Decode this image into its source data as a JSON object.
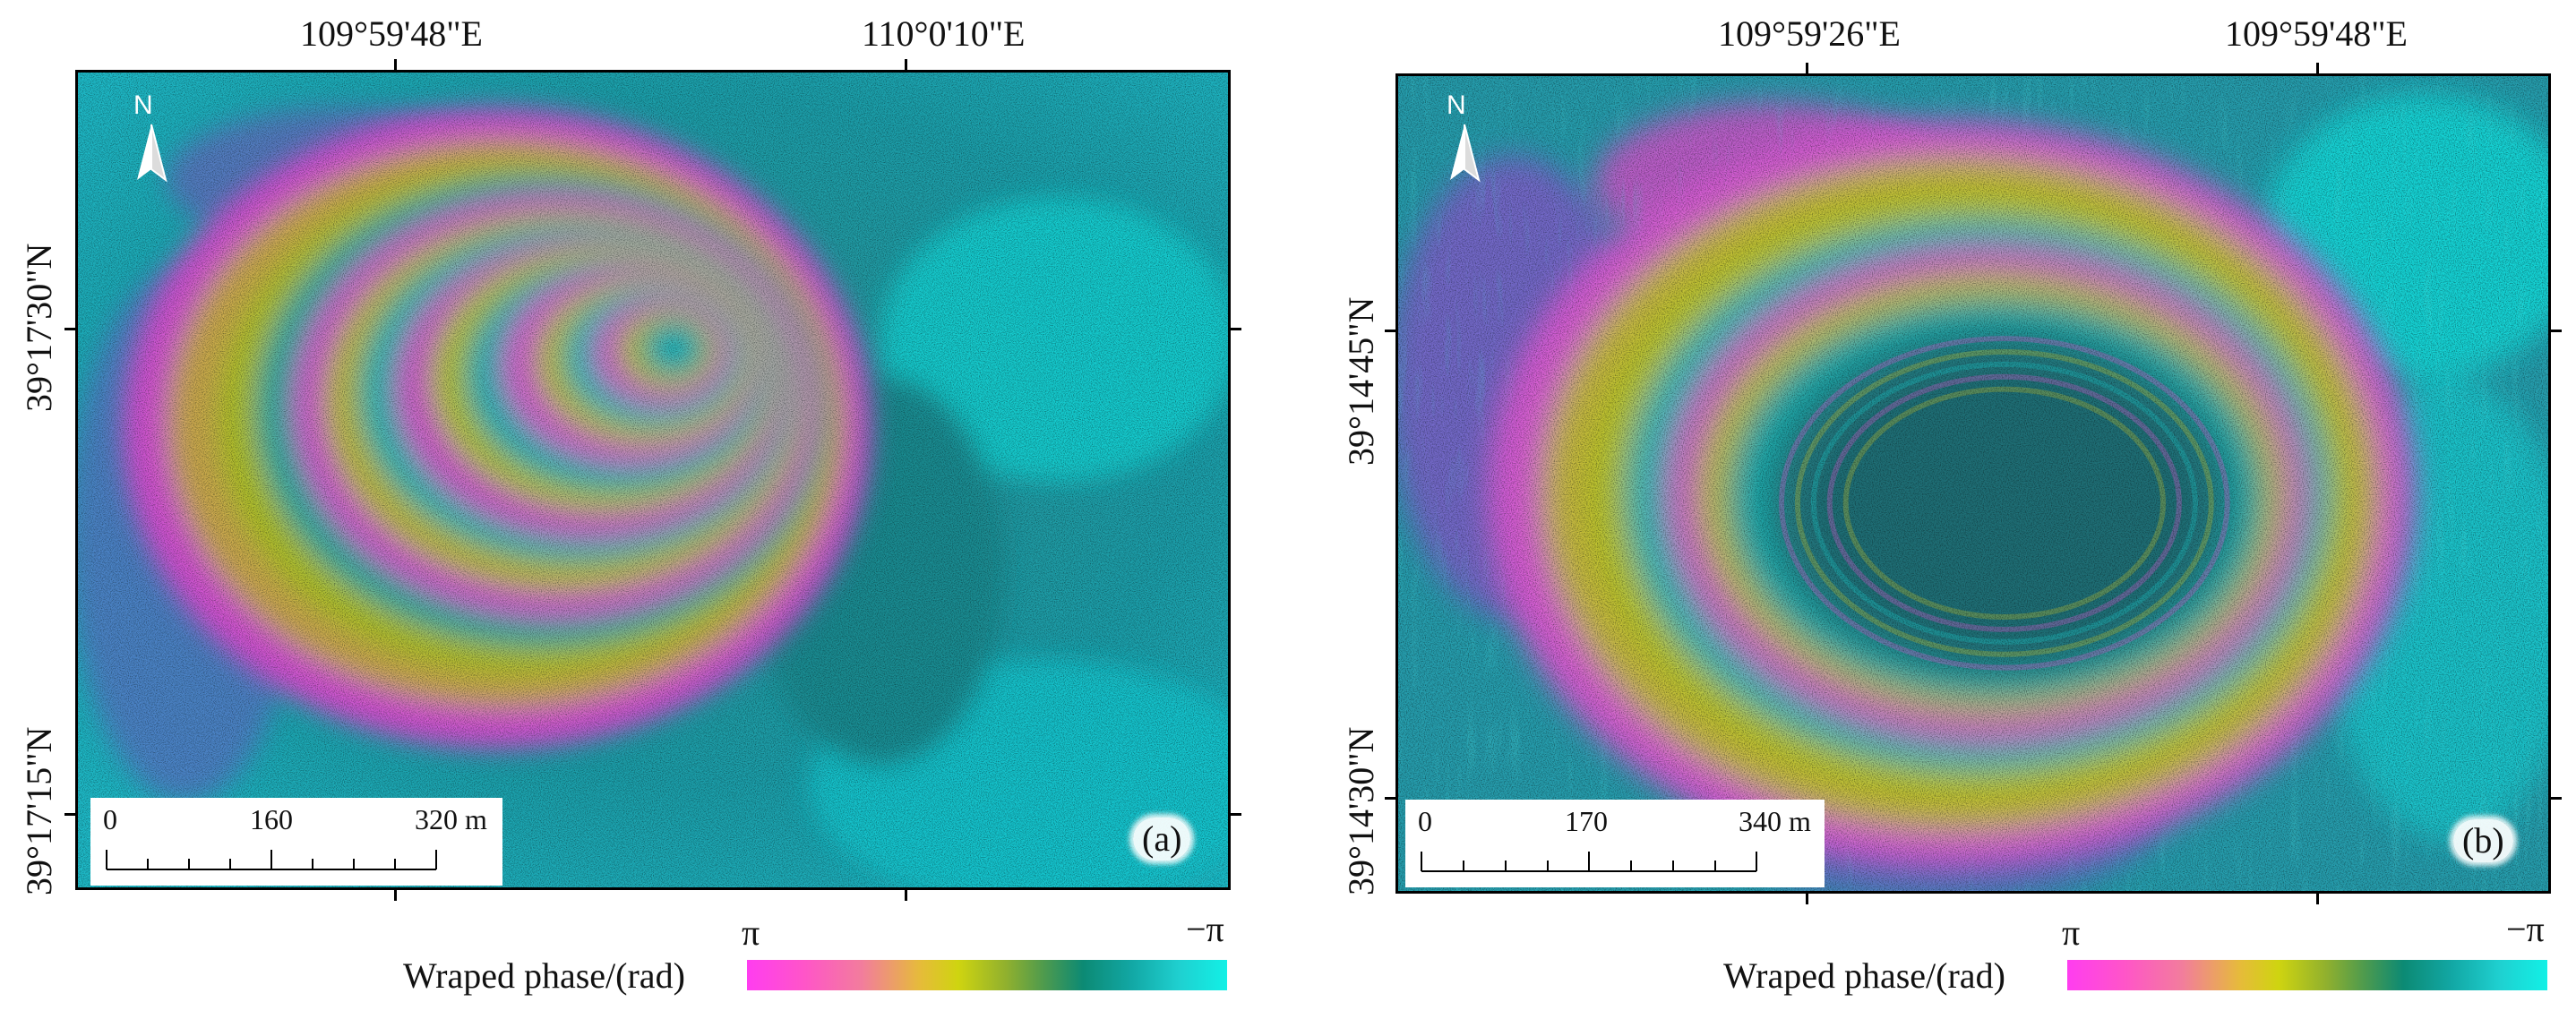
{
  "figure": {
    "panel_a": {
      "top_coords": [
        "109°59'48\"E",
        "110°0'10\"E"
      ],
      "left_coords": [
        "39°17'30\"N",
        "39°17'15\"N"
      ],
      "north_label": "N",
      "scale_labels": [
        "0",
        "160",
        "320 m"
      ],
      "panel_label": "(a)",
      "colorbar": {
        "max_label": "π",
        "min_label": "−π",
        "title": "Wraped phase/(rad)"
      }
    },
    "panel_b": {
      "top_coords": [
        "109°59'26\"E",
        "109°59'48\"E"
      ],
      "left_coords": [
        "39°14'45\"N",
        "39°14'30\"N"
      ],
      "north_label": "N",
      "scale_labels": [
        "0",
        "170",
        "340 m"
      ],
      "panel_label": "(b)",
      "colorbar": {
        "max_label": "π",
        "min_label": "−π",
        "title": "Wraped phase/(rad)"
      }
    }
  },
  "colors": {
    "magenta": "#ff3df0",
    "yellow": "#cfd410",
    "teal": "#0c8a74",
    "cyan": "#12f0e6",
    "background_texture": "#2a8a8a"
  }
}
